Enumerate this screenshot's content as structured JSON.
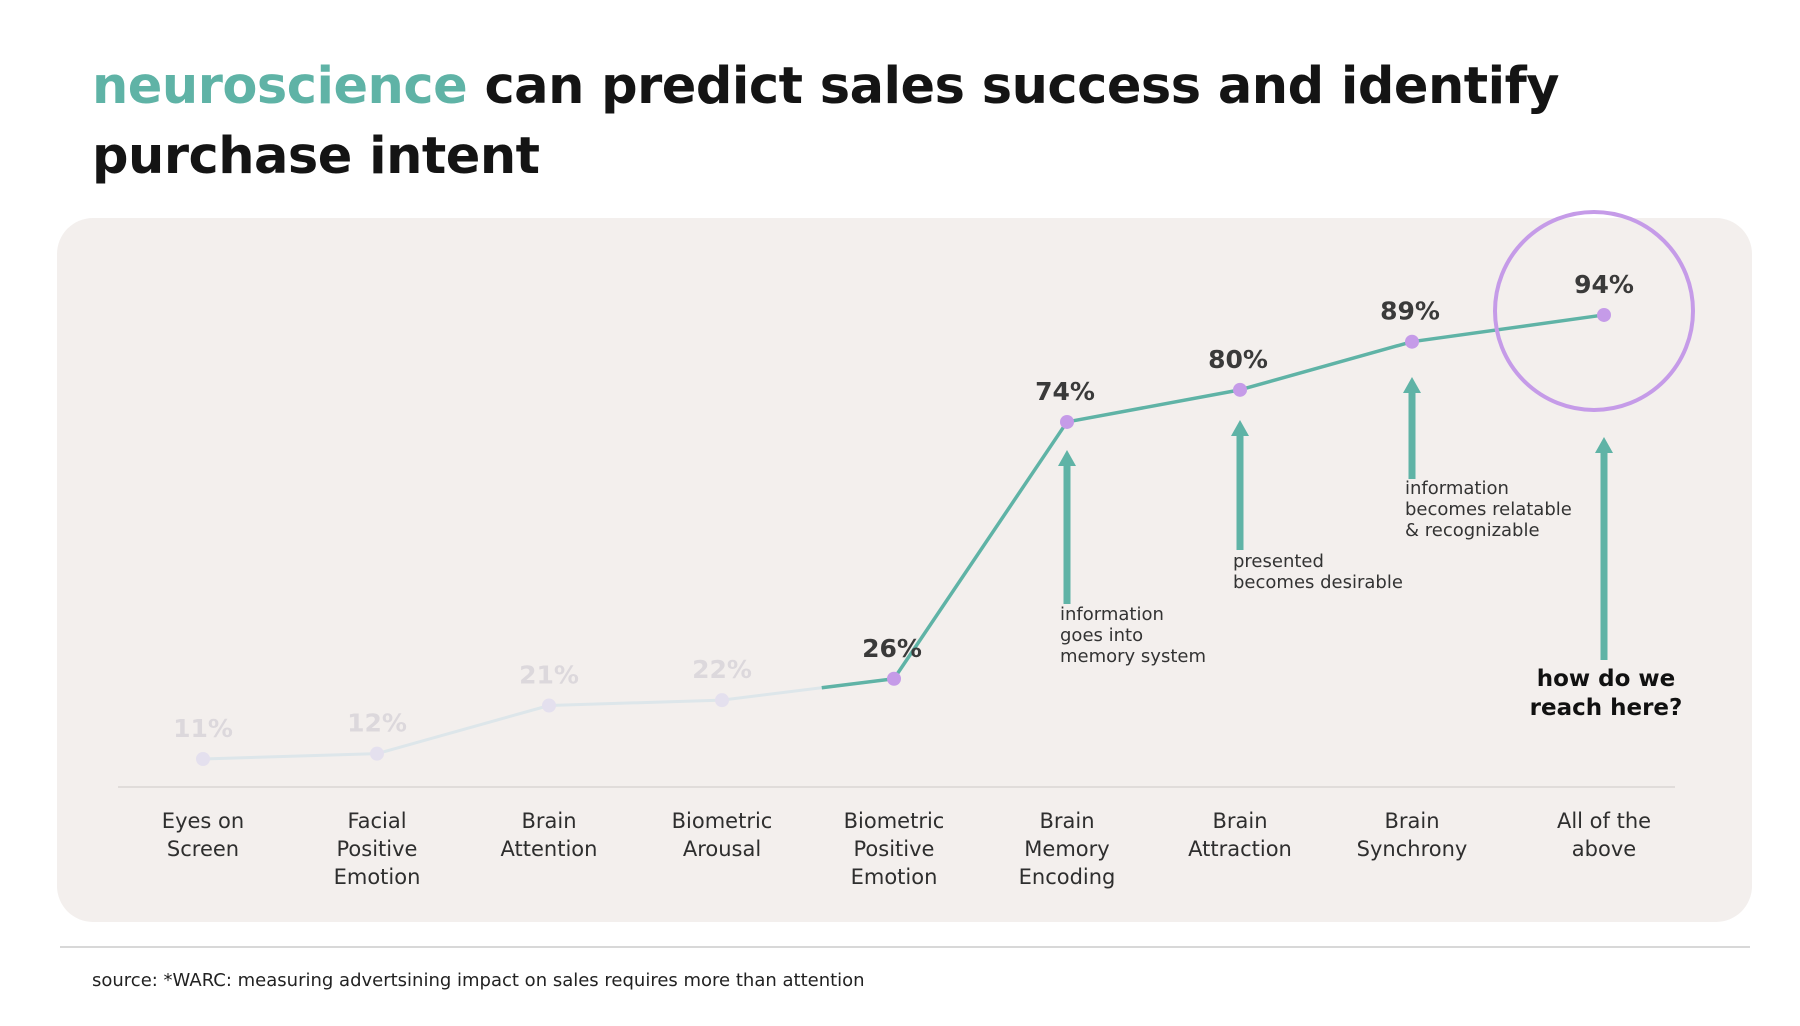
{
  "title": {
    "accent": "neuroscience",
    "rest": " can predict sales success and identify purchase intent"
  },
  "source": "source: *WARC: measuring advertsining impact on sales requires more than attention",
  "colors": {
    "accent": "#5fb3a6",
    "line_active": "#5fb3a6",
    "line_faded": "#dde6ea",
    "point_active": "#c59be8",
    "point_faded": "#e4e0ee",
    "highlight_circle": "#c59be8",
    "panel": "#f3efed"
  },
  "chart_data": {
    "type": "line",
    "categories": [
      "Eyes on\nScreen",
      "Facial\nPositive\nEmotion",
      "Brain\nAttention",
      "Biometric\nArousal",
      "Biometric\nPositive\nEmotion",
      "Brain\nMemory\nEncoding",
      "Brain\nAttraction",
      "Brain\nSynchrony",
      "All of the\nabove"
    ],
    "values": [
      11,
      12,
      21,
      22,
      26,
      74,
      80,
      89,
      94
    ],
    "value_labels": [
      "11%",
      "12%",
      "21%",
      "22%",
      "26%",
      "74%",
      "80%",
      "89%",
      "94%"
    ],
    "faded_count": 4,
    "highlight": "All of the\nabove",
    "annotations": [
      {
        "category": "Brain\nMemory\nEncoding",
        "text": "information\ngoes into\nmemory system"
      },
      {
        "category": "Brain\nAttraction",
        "text": "presented\nbecomes desirable"
      },
      {
        "category": "Brain\nSynchrony",
        "text": "information\nbecomes relatable\n& recognizable"
      },
      {
        "category": "All of the\nabove",
        "text": "how do we\nreach here?",
        "emphasis": true
      }
    ],
    "grid": false,
    "legend": "none"
  }
}
